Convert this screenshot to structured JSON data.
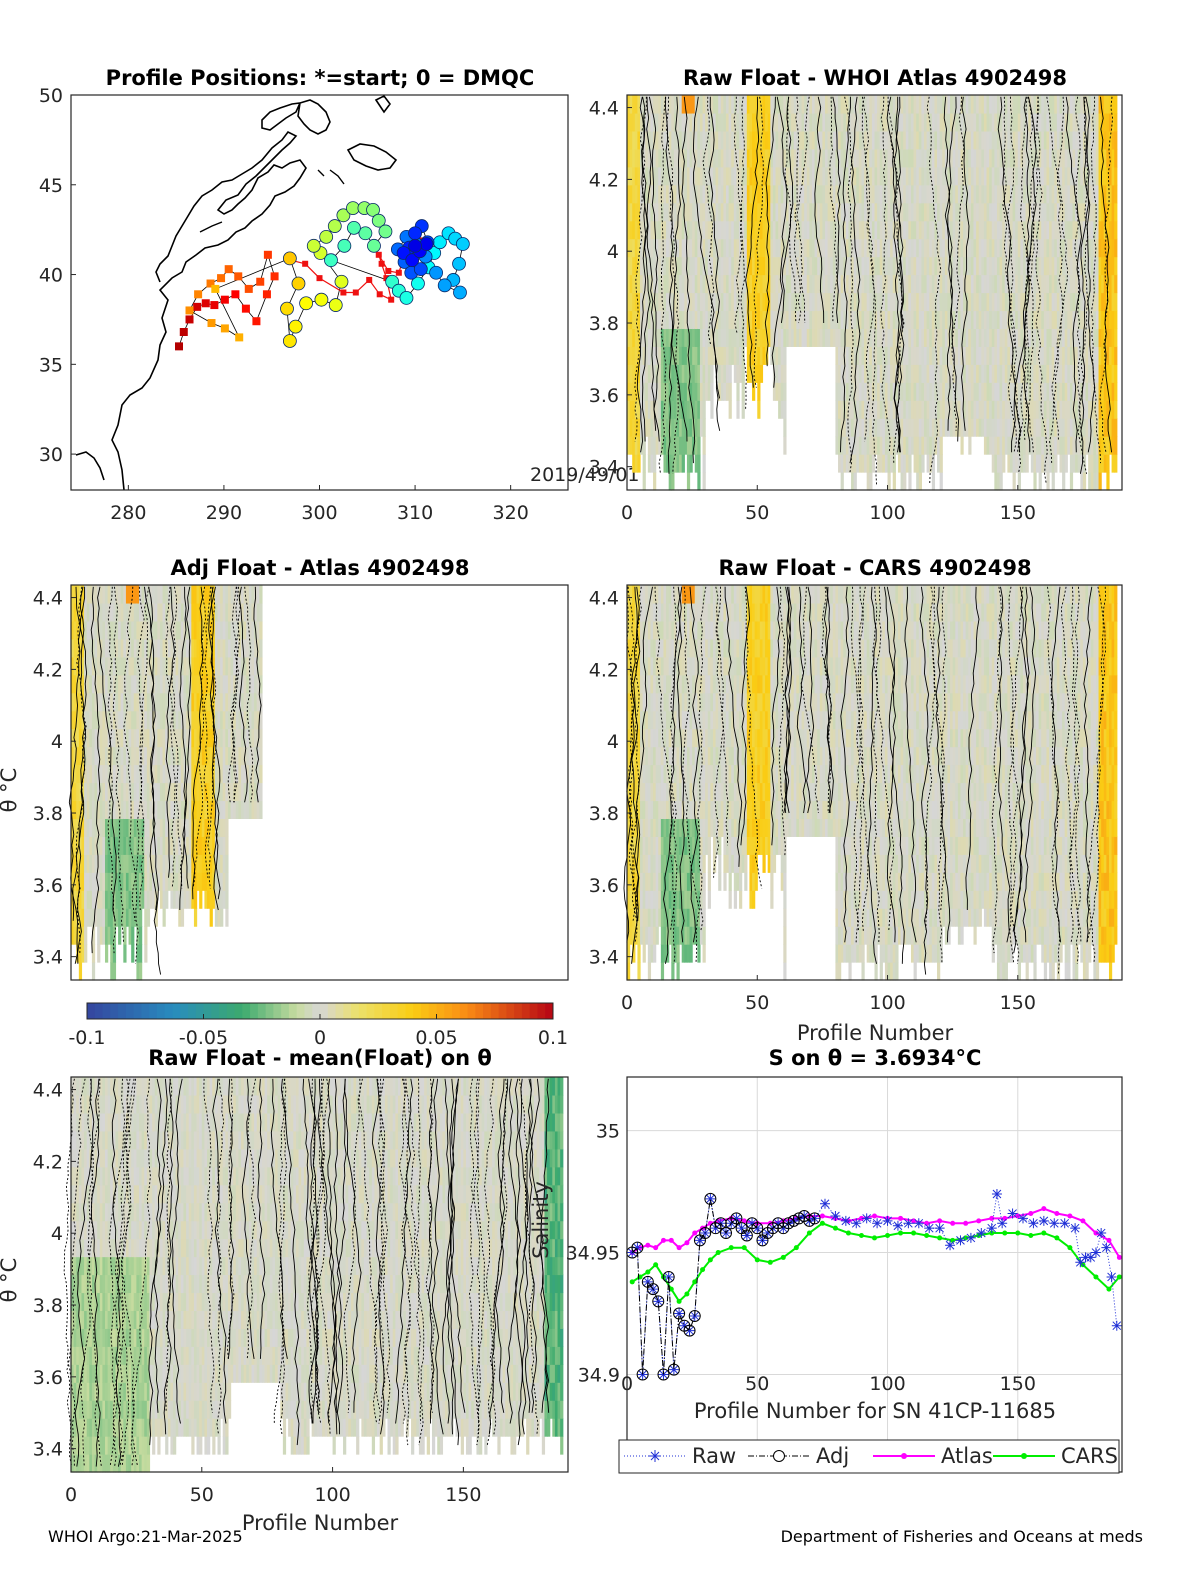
{
  "footer": {
    "left": "WHOI Argo:21-Mar-2025",
    "right": "Department of Fisheries and Oceans at meds"
  },
  "colors": {
    "raw": "#1f2fd6",
    "adj": "#000000",
    "atlas": "#ff00ff",
    "cars": "#00ee00",
    "track": "#ee1111",
    "land": "#000000",
    "grid": "#d9d9d9"
  },
  "chart_data": [
    {
      "type": "scatter",
      "id": "map",
      "title": "Profile Positions: *=start; 0 = DMQC",
      "xlim": [
        274,
        326
      ],
      "ylim": [
        28,
        50
      ],
      "x_ticks": [
        280,
        290,
        300,
        310,
        320
      ],
      "y_ticks": [
        30,
        35,
        40,
        45,
        50
      ],
      "annotation": "2019/49/01",
      "points": [
        [
          285.3,
          36.0
        ],
        [
          285.8,
          36.8
        ],
        [
          286.4,
          37.5
        ],
        [
          287.2,
          38.2
        ],
        [
          288.1,
          38.4
        ],
        [
          289.0,
          38.3
        ],
        [
          290.1,
          38.6
        ],
        [
          291.2,
          38.9
        ],
        [
          292.3,
          38.1
        ],
        [
          293.4,
          37.4
        ],
        [
          294.5,
          38.9
        ],
        [
          295.3,
          39.9
        ],
        [
          294.6,
          41.1
        ],
        [
          293.8,
          39.6
        ],
        [
          292.6,
          39.2
        ],
        [
          291.5,
          39.9
        ],
        [
          290.5,
          40.3
        ],
        [
          289.7,
          39.8
        ],
        [
          288.6,
          39.5
        ],
        [
          287.3,
          38.9
        ],
        [
          286.4,
          38.0
        ],
        [
          288.7,
          37.3
        ],
        [
          290.1,
          37.0
        ],
        [
          291.6,
          36.5
        ],
        [
          289.1,
          39.2
        ],
        [
          296.9,
          40.9
        ],
        [
          297.8,
          39.5
        ],
        [
          296.6,
          38.1
        ],
        [
          296.9,
          36.3
        ],
        [
          297.5,
          37.1
        ],
        [
          298.6,
          38.4
        ],
        [
          300.2,
          38.6
        ],
        [
          301.7,
          38.3
        ],
        [
          302.3,
          39.6
        ],
        [
          300.1,
          41.2
        ],
        [
          299.4,
          41.6
        ],
        [
          300.7,
          42.1
        ],
        [
          301.6,
          42.7
        ],
        [
          302.5,
          43.3
        ],
        [
          303.5,
          43.7
        ],
        [
          304.7,
          43.7
        ],
        [
          305.6,
          43.6
        ],
        [
          306.2,
          43.0
        ],
        [
          306.9,
          42.4
        ],
        [
          305.7,
          41.6
        ],
        [
          304.8,
          42.3
        ],
        [
          303.6,
          42.6
        ],
        [
          302.6,
          41.6
        ],
        [
          301.2,
          40.8
        ],
        [
          307.6,
          39.6
        ],
        [
          308.3,
          39.1
        ],
        [
          309.1,
          38.7
        ],
        [
          310.3,
          39.5
        ],
        [
          311.4,
          40.4
        ],
        [
          312.0,
          41.2
        ],
        [
          312.6,
          41.8
        ],
        [
          313.5,
          42.3
        ],
        [
          314.2,
          42.0
        ],
        [
          315.0,
          41.7
        ],
        [
          314.6,
          40.6
        ],
        [
          314.0,
          39.7
        ],
        [
          314.7,
          39.0
        ],
        [
          313.1,
          39.4
        ],
        [
          312.2,
          40.1
        ],
        [
          311.1,
          41.0
        ],
        [
          310.1,
          41.7
        ],
        [
          309.1,
          42.1
        ],
        [
          308.2,
          41.4
        ],
        [
          308.9,
          40.7
        ],
        [
          309.6,
          40.1
        ],
        [
          310.6,
          40.3
        ],
        [
          311.3,
          41.8
        ],
        [
          310.7,
          42.7
        ],
        [
          310.0,
          42.3
        ],
        [
          309.4,
          41.5
        ],
        [
          308.8,
          41.2
        ],
        [
          309.7,
          40.8
        ],
        [
          310.5,
          41.3
        ],
        [
          311.2,
          41.7
        ],
        [
          310.0,
          41.6
        ]
      ],
      "track_end": [
        [
          297.0,
          40.8
        ],
        [
          298.5,
          40.6
        ],
        [
          300.0,
          39.8
        ],
        [
          302.5,
          39.0
        ],
        [
          303.8,
          39.0
        ],
        [
          305.2,
          39.7
        ],
        [
          306.3,
          38.9
        ],
        [
          307.5,
          38.6
        ],
        [
          307.0,
          39.8
        ],
        [
          306.5,
          40.6
        ],
        [
          306.2,
          41.1
        ],
        [
          307.2,
          40.2
        ],
        [
          308.3,
          40.1
        ],
        [
          308.9,
          41.1
        ],
        [
          309.5,
          41.9
        ],
        [
          310.2,
          41.6
        ],
        [
          310.8,
          41.9
        ],
        [
          311.6,
          41.3
        ],
        [
          311.0,
          41.2
        ]
      ]
    },
    {
      "type": "heatmap",
      "id": "whoi",
      "title": "Raw Float - WHOI Atlas  4902498",
      "xlim": [
        0,
        190
      ],
      "ylim": [
        3.335,
        4.435
      ],
      "x_ticks": [
        0,
        50,
        100,
        150
      ],
      "y_ticks": [
        3.4,
        3.6,
        3.8,
        4,
        4.2,
        4.4
      ],
      "xlabel": "",
      "ylabel": ""
    },
    {
      "type": "heatmap",
      "id": "adj",
      "title": "Adj Float - Atlas  4902498",
      "xlim": [
        0,
        190
      ],
      "ylim": [
        3.335,
        4.435
      ],
      "x_ticks": [],
      "y_ticks": [
        3.4,
        3.6,
        3.8,
        4,
        4.2,
        4.4
      ],
      "xlabel": "",
      "ylabel": "θ °C"
    },
    {
      "type": "heatmap",
      "id": "cars",
      "title": "Raw Float - CARS  4902498",
      "xlim": [
        0,
        190
      ],
      "ylim": [
        3.335,
        4.435
      ],
      "x_ticks": [
        0,
        50,
        100,
        150
      ],
      "y_ticks": [
        3.4,
        3.6,
        3.8,
        4,
        4.2,
        4.4
      ],
      "xlabel": "Profile Number",
      "ylabel": ""
    },
    {
      "type": "heatmap",
      "id": "mean",
      "title": "Raw Float - mean(Float) on θ",
      "xlim": [
        0,
        190
      ],
      "ylim": [
        3.335,
        4.435
      ],
      "x_ticks": [
        0,
        50,
        100,
        150
      ],
      "y_ticks": [
        3.4,
        3.6,
        3.8,
        4,
        4.2,
        4.4
      ],
      "xlabel": "Profile Number",
      "ylabel": "θ °C"
    },
    {
      "type": "line",
      "id": "salinity",
      "title": "S on θ = 3.6934°C",
      "xlim": [
        0,
        190
      ],
      "ylim": [
        34.86,
        35.022
      ],
      "x_ticks": [
        0,
        50,
        100,
        150
      ],
      "y_ticks": [
        34.9,
        34.95,
        35
      ],
      "xlabel": "Profile Number for SN 41CP-11685",
      "ylabel": "Salinity",
      "legend": {
        "position": "bottom",
        "entries": [
          "Raw",
          "Adj",
          "Atlas",
          "CARS"
        ]
      },
      "series": [
        {
          "name": "Raw",
          "x": [
            2,
            4,
            6,
            8,
            10,
            12,
            14,
            16,
            18,
            20,
            22,
            24,
            26,
            28,
            30,
            32,
            34,
            36,
            38,
            40,
            42,
            44,
            46,
            48,
            50,
            52,
            54,
            56,
            58,
            60,
            62,
            64,
            66,
            68,
            70,
            72,
            76,
            80,
            84,
            88,
            92,
            96,
            100,
            104,
            108,
            112,
            116,
            120,
            124,
            128,
            132,
            136,
            140,
            142,
            144,
            148,
            152,
            156,
            160,
            164,
            168,
            172,
            174,
            176,
            178,
            180,
            182,
            184,
            186,
            188
          ],
          "y": [
            34.95,
            34.952,
            34.9,
            34.938,
            34.935,
            34.93,
            34.9,
            34.94,
            34.902,
            34.925,
            34.92,
            34.918,
            34.924,
            34.955,
            34.958,
            34.972,
            34.96,
            34.962,
            34.958,
            34.962,
            34.964,
            34.96,
            34.957,
            34.962,
            34.96,
            34.955,
            34.958,
            34.96,
            34.962,
            34.96,
            34.962,
            34.963,
            34.964,
            34.965,
            34.963,
            34.964,
            34.97,
            34.965,
            34.963,
            34.962,
            34.964,
            34.962,
            34.963,
            34.961,
            34.962,
            34.962,
            34.96,
            34.96,
            34.953,
            34.955,
            34.956,
            34.958,
            34.96,
            34.974,
            34.962,
            34.966,
            34.964,
            34.962,
            34.963,
            34.962,
            34.962,
            34.96,
            34.946,
            34.948,
            34.948,
            34.95,
            34.958,
            34.952,
            34.94,
            34.92
          ]
        },
        {
          "name": "Adj",
          "x": [
            2,
            4,
            6,
            8,
            10,
            12,
            14,
            16,
            18,
            20,
            22,
            24,
            26,
            28,
            30,
            32,
            34,
            36,
            38,
            40,
            42,
            44,
            46,
            48,
            50,
            52,
            54,
            56,
            58,
            60,
            62,
            64,
            66,
            68,
            70,
            72
          ],
          "y": [
            34.95,
            34.952,
            34.9,
            34.938,
            34.935,
            34.93,
            34.9,
            34.94,
            34.902,
            34.925,
            34.92,
            34.918,
            34.924,
            34.955,
            34.958,
            34.972,
            34.96,
            34.962,
            34.958,
            34.962,
            34.964,
            34.96,
            34.957,
            34.962,
            34.96,
            34.955,
            34.958,
            34.96,
            34.962,
            34.96,
            34.962,
            34.963,
            34.964,
            34.965,
            34.963,
            34.964
          ]
        },
        {
          "name": "Atlas",
          "x": [
            2,
            5,
            8,
            11,
            14,
            17,
            20,
            23,
            26,
            29,
            32,
            35,
            40,
            45,
            50,
            55,
            60,
            65,
            70,
            75,
            80,
            85,
            90,
            95,
            100,
            105,
            110,
            115,
            120,
            125,
            130,
            135,
            140,
            145,
            150,
            155,
            160,
            165,
            170,
            175,
            180,
            185,
            189
          ],
          "y": [
            34.95,
            34.952,
            34.953,
            34.952,
            34.955,
            34.955,
            34.952,
            34.954,
            34.958,
            34.96,
            34.962,
            34.963,
            34.964,
            34.963,
            34.962,
            34.962,
            34.963,
            34.964,
            34.965,
            34.965,
            34.964,
            34.963,
            34.964,
            34.965,
            34.964,
            34.964,
            34.963,
            34.962,
            34.963,
            34.962,
            34.962,
            34.963,
            34.964,
            34.964,
            34.965,
            34.966,
            34.968,
            34.966,
            34.965,
            34.963,
            34.958,
            34.955,
            34.948
          ]
        },
        {
          "name": "CARS",
          "x": [
            2,
            5,
            8,
            11,
            14,
            17,
            20,
            23,
            26,
            29,
            32,
            35,
            40,
            45,
            50,
            55,
            60,
            65,
            70,
            75,
            80,
            85,
            90,
            95,
            100,
            105,
            110,
            115,
            120,
            125,
            130,
            135,
            140,
            145,
            150,
            155,
            160,
            165,
            170,
            175,
            180,
            185,
            189
          ],
          "y": [
            34.938,
            34.94,
            34.942,
            34.945,
            34.94,
            34.935,
            34.93,
            34.933,
            34.938,
            34.943,
            34.947,
            34.95,
            34.952,
            34.952,
            34.947,
            34.946,
            34.948,
            34.952,
            34.958,
            34.962,
            34.96,
            34.958,
            34.957,
            34.956,
            34.957,
            34.958,
            34.958,
            34.957,
            34.956,
            34.955,
            34.956,
            34.957,
            34.958,
            34.958,
            34.958,
            34.957,
            34.958,
            34.956,
            34.952,
            34.945,
            34.94,
            34.935,
            34.94
          ]
        }
      ]
    }
  ],
  "colorbar": {
    "ticks": [
      "-0.1",
      "-0.05",
      "0",
      "0.05",
      "0.1"
    ],
    "range": [
      -0.1,
      0.1
    ]
  }
}
